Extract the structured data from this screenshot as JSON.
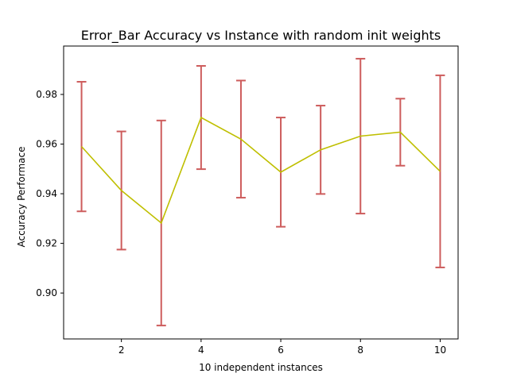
{
  "chart_data": {
    "type": "line",
    "title": "Error_Bar Accuracy vs Instance with random init weights",
    "xlabel": "10 independent instances",
    "ylabel": "Accuracy Performace",
    "xlim": [
      0.55,
      10.45
    ],
    "ylim": [
      0.8815,
      0.9995
    ],
    "xticks": [
      2,
      4,
      6,
      8,
      10
    ],
    "yticks": [
      0.9,
      0.92,
      0.94,
      0.96,
      0.98
    ],
    "xtick_labels": [
      "2",
      "4",
      "6",
      "8",
      "10"
    ],
    "ytick_labels": [
      "0.90",
      "0.92",
      "0.94",
      "0.96",
      "0.98"
    ],
    "grid": false,
    "series": [
      {
        "x": [
          1,
          2,
          3,
          4,
          5,
          6,
          7,
          8,
          9,
          10
        ],
        "y": [
          0.959,
          0.9413,
          0.9282,
          0.9707,
          0.962,
          0.9487,
          0.9577,
          0.9632,
          0.9648,
          0.949
        ],
        "yerr": [
          0.0261,
          0.0238,
          0.0413,
          0.0208,
          0.0236,
          0.022,
          0.0178,
          0.0312,
          0.0135,
          0.0387
        ],
        "line_color": "#bfbf00",
        "errorbar_color": "#cd5c5c"
      }
    ]
  }
}
